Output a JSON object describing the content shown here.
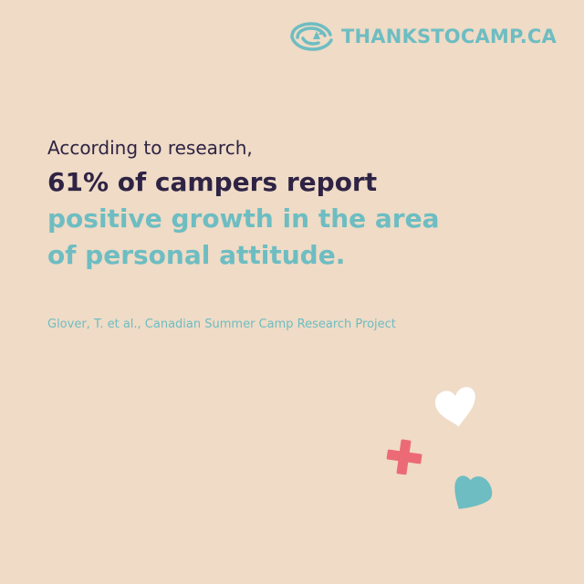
{
  "brand": {
    "logo_icon": "canoe-logo-icon",
    "name": "THANKSTOCAMP.CA"
  },
  "copy": {
    "intro": "According to research,",
    "stat_line": "61% of campers report",
    "claim_line_1": "positive growth in the area",
    "claim_line_2": "of personal attitude."
  },
  "citation": "Glover, T. et al., Canadian Summer Camp Research Project",
  "colors": {
    "background": "#efdbc6",
    "dark_text": "#2e2344",
    "accent_teal": "#6dbdc2",
    "accent_red": "#ec6a76",
    "white": "#ffffff"
  },
  "decorations": [
    "heart-icon",
    "plus-icon",
    "heart-icon"
  ]
}
